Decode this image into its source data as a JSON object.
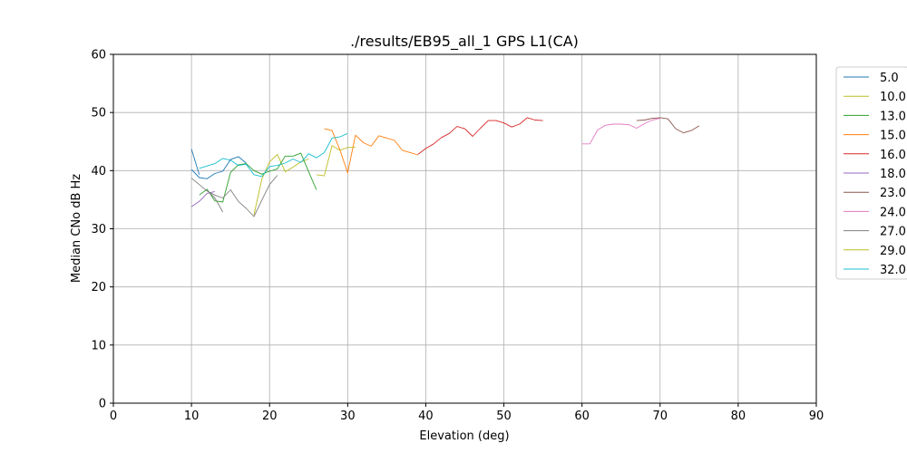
{
  "chart_data": {
    "type": "line",
    "title": "./results/EB95_all_1 GPS L1(CA)",
    "xlabel": "Elevation (deg)",
    "ylabel": "Median CNo dB Hz",
    "xlim": [
      0,
      90
    ],
    "ylim": [
      0,
      60
    ],
    "xticks": [
      "0",
      "10",
      "20",
      "30",
      "40",
      "50",
      "60",
      "70",
      "80",
      "90"
    ],
    "yticks": [
      "0",
      "10",
      "20",
      "30",
      "40",
      "50",
      "60"
    ],
    "grid": true,
    "legend_position": "right",
    "series": [
      {
        "name": "5.0",
        "color": "#1f77b4",
        "x": [
          10,
          11
        ],
        "y": [
          43.7,
          39.3
        ]
      },
      {
        "name": "10.0",
        "color": "#bcbd22",
        "x": [
          18,
          19,
          20,
          21,
          22,
          23,
          24,
          25
        ],
        "y": [
          32.4,
          38.5,
          41.5,
          42.8,
          39.8,
          40.6,
          41.5,
          42.0
        ]
      },
      {
        "name": "13.0",
        "color": "#2ca02c",
        "x": [
          11,
          12,
          13,
          14,
          15,
          16,
          17,
          18,
          19,
          20,
          21,
          22,
          23,
          24,
          25,
          26
        ],
        "y": [
          35.8,
          36.8,
          34.8,
          34.6,
          39.7,
          41.0,
          41.2,
          40.0,
          39.4,
          39.9,
          40.3,
          42.5,
          42.5,
          43.0,
          39.8,
          36.7
        ]
      },
      {
        "name": "15.0",
        "color": "#ff7f0e",
        "x": [
          27,
          28,
          29,
          30,
          31,
          32,
          33,
          34,
          35,
          36,
          37,
          38,
          39
        ],
        "y": [
          47.2,
          46.9,
          43.6,
          39.6,
          46.1,
          44.8,
          44.2,
          46.0,
          45.6,
          45.2,
          43.5,
          43.1,
          42.7
        ]
      },
      {
        "name": "16.0",
        "color": "#d62728",
        "x": [
          39,
          40,
          41,
          42,
          43,
          44,
          45,
          46,
          47,
          48,
          49,
          50,
          51,
          52,
          53,
          54,
          55
        ],
        "y": [
          42.8,
          43.8,
          44.6,
          45.7,
          46.4,
          47.6,
          47.2,
          45.9,
          47.3,
          48.6,
          48.6,
          48.2,
          47.5,
          48.0,
          49.1,
          48.7,
          48.6
        ]
      },
      {
        "name": "18.0",
        "color": "#9467bd",
        "x": [
          10,
          11,
          12,
          13
        ],
        "y": [
          33.8,
          34.7,
          36.1,
          36.4
        ]
      },
      {
        "name": "23.0",
        "color": "#8c564b",
        "x": [
          67,
          68,
          69,
          70,
          71,
          72,
          73,
          74,
          75
        ],
        "y": [
          48.6,
          48.7,
          49.0,
          49.1,
          48.9,
          47.2,
          46.5,
          46.9,
          47.7
        ]
      },
      {
        "name": "24.0",
        "color": "#e377c2",
        "x": [
          60,
          61,
          62,
          63,
          64,
          65,
          66,
          67,
          68,
          69,
          70
        ],
        "y": [
          44.6,
          44.6,
          47.0,
          47.8,
          48.0,
          48.0,
          47.9,
          47.3,
          48.1,
          48.7,
          49.0
        ]
      },
      {
        "name": "27.0",
        "color": "#7f7f7f",
        "x": [
          10,
          11,
          12,
          13,
          14,
          15,
          16,
          17,
          18,
          19,
          20,
          21
        ],
        "y": [
          38.7,
          37.6,
          36.5,
          35.8,
          35.3,
          36.7,
          34.7,
          33.5,
          32.1,
          34.9,
          37.6,
          39.2
        ]
      },
      {
        "name": "29.0",
        "color": "#bcbd22",
        "x": [
          26,
          27,
          28,
          29,
          30,
          31
        ],
        "y": [
          39.3,
          39.1,
          44.3,
          43.5,
          44.0,
          44.0
        ]
      },
      {
        "name": "32.0",
        "color": "#17becf",
        "x": [
          11,
          12,
          13,
          14,
          15,
          16,
          17,
          18,
          19,
          20,
          21,
          22,
          23,
          24,
          25,
          26,
          27,
          28,
          29,
          30
        ],
        "y": [
          40.4,
          40.8,
          41.2,
          42.1,
          41.8,
          40.9,
          41.1,
          39.3,
          39.0,
          40.7,
          40.9,
          41.3,
          42.0,
          41.4,
          42.9,
          42.2,
          43.1,
          45.6,
          45.8,
          46.4
        ]
      },
      {
        "name": "",
        "color": "#1f77b4",
        "x": [
          10,
          11,
          12,
          13,
          14,
          15,
          16,
          17
        ],
        "y": [
          40.2,
          38.8,
          38.6,
          39.5,
          39.9,
          41.9,
          42.4,
          41.3
        ]
      },
      {
        "name": "",
        "color": "#7f7f7f",
        "x": [
          12,
          13,
          14
        ],
        "y": [
          36.6,
          35.3,
          32.9
        ]
      }
    ]
  }
}
